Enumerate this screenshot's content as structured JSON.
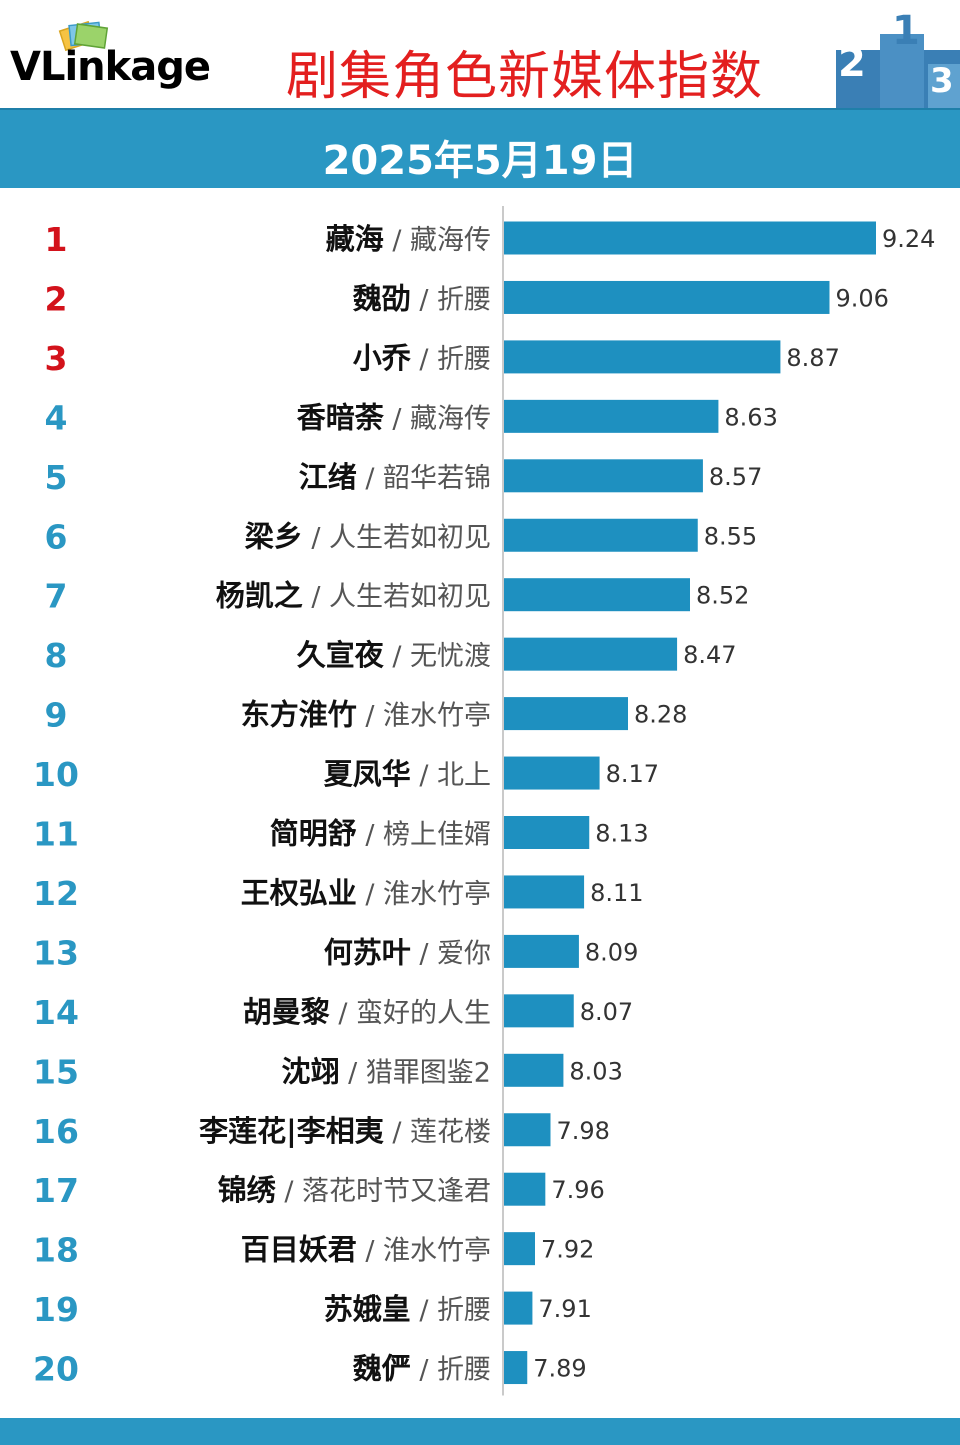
{
  "header": {
    "logo": "VLinkage",
    "title": "剧集角色新媒体指数",
    "date": "2025年5月19日"
  },
  "colors": {
    "bar": "#1e90c0",
    "top_rank": "#d3121b",
    "rank": "#2a97c3",
    "band": "#2a97c3",
    "title": "#e31f1f"
  },
  "chart_data": {
    "type": "bar",
    "orientation": "horizontal",
    "grid": false,
    "categories": [
      {
        "rank": "1",
        "name": "藏海",
        "show": "藏海传"
      },
      {
        "rank": "2",
        "name": "魏劭",
        "show": "折腰"
      },
      {
        "rank": "3",
        "name": "小乔",
        "show": "折腰"
      },
      {
        "rank": "4",
        "name": "香暗荼",
        "show": "藏海传"
      },
      {
        "rank": "5",
        "name": "江绪",
        "show": "韶华若锦"
      },
      {
        "rank": "6",
        "name": "梁乡",
        "show": "人生若如初见"
      },
      {
        "rank": "7",
        "name": "杨凯之",
        "show": "人生若如初见"
      },
      {
        "rank": "8",
        "name": "久宣夜",
        "show": "无忧渡"
      },
      {
        "rank": "9",
        "name": "东方淮竹",
        "show": "淮水竹亭"
      },
      {
        "rank": "10",
        "name": "夏凤华",
        "show": "北上"
      },
      {
        "rank": "11",
        "name": "简明舒",
        "show": "榜上佳婿"
      },
      {
        "rank": "12",
        "name": "王权弘业",
        "show": "淮水竹亭"
      },
      {
        "rank": "13",
        "name": "何苏叶",
        "show": "爱你"
      },
      {
        "rank": "14",
        "name": "胡曼黎",
        "show": "蛮好的人生"
      },
      {
        "rank": "15",
        "name": "沈翊",
        "show": "猎罪图鉴2"
      },
      {
        "rank": "16",
        "name": "李莲花|李相夷",
        "show": "莲花楼"
      },
      {
        "rank": "17",
        "name": "锦绣",
        "show": "落花时节又逢君"
      },
      {
        "rank": "18",
        "name": "百目妖君",
        "show": "淮水竹亭"
      },
      {
        "rank": "19",
        "name": "苏娥皇",
        "show": "折腰"
      },
      {
        "rank": "20",
        "name": "魏俨",
        "show": "折腰"
      }
    ],
    "values": [
      9.24,
      9.06,
      8.87,
      8.63,
      8.57,
      8.55,
      8.52,
      8.47,
      8.28,
      8.17,
      8.13,
      8.11,
      8.09,
      8.07,
      8.03,
      7.98,
      7.96,
      7.92,
      7.91,
      7.89
    ],
    "value_labels": [
      "9.24",
      "9.06",
      "8.87",
      "8.63",
      "8.57",
      "8.55",
      "8.52",
      "8.47",
      "8.28",
      "8.17",
      "8.13",
      "8.11",
      "8.09",
      "8.07",
      "8.03",
      "7.98",
      "7.96",
      "7.92",
      "7.91",
      "7.89"
    ],
    "xlim": [
      7.8,
      9.24
    ]
  }
}
